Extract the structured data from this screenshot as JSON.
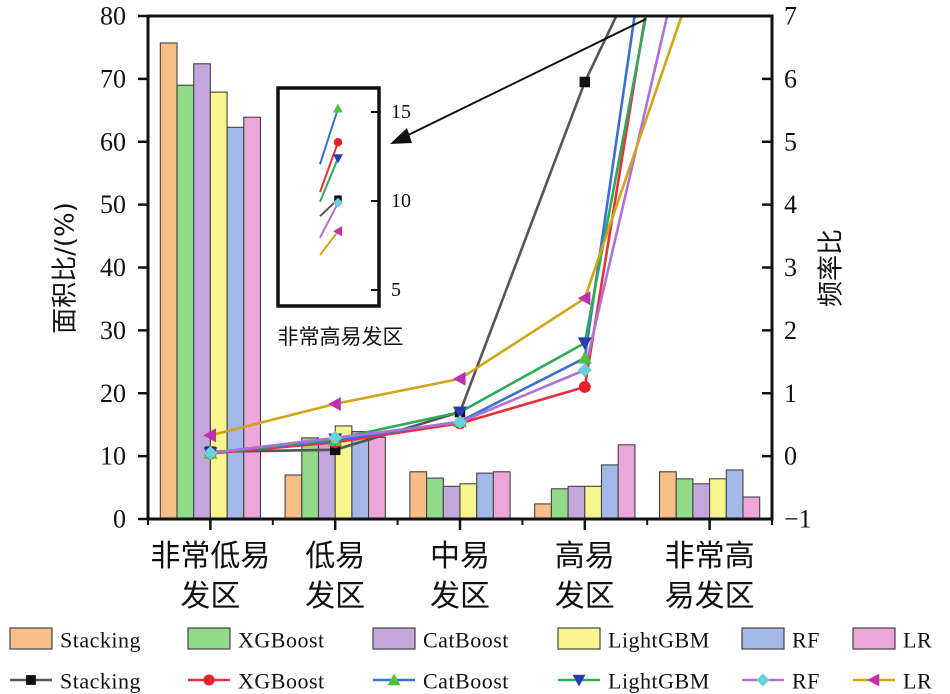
{
  "chart_data": {
    "type": "bar",
    "title": "",
    "xlabel": "",
    "ylabel": "面积比/(%)",
    "y2label": "频率比",
    "ylim": [
      0,
      80
    ],
    "y2lim": [
      -1,
      7
    ],
    "yticks": [
      "0",
      "10",
      "20",
      "30",
      "40",
      "50",
      "60",
      "70",
      "80"
    ],
    "y2ticks": [
      "−1",
      "0",
      "1",
      "2",
      "3",
      "4",
      "5",
      "6",
      "7"
    ],
    "categories": [
      [
        "非常低易",
        "发区"
      ],
      [
        "低易",
        "发区"
      ],
      [
        "中易",
        "发区"
      ],
      [
        "高易",
        "发区"
      ],
      [
        "非常高",
        "易发区"
      ]
    ],
    "bar_series": [
      {
        "name": "Stacking",
        "color": "#F8BE88",
        "values": [
          75.7,
          7.0,
          7.5,
          2.4,
          7.5
        ]
      },
      {
        "name": "XGBoost",
        "color": "#92D98A",
        "values": [
          69.0,
          12.9,
          6.5,
          4.8,
          6.4
        ]
      },
      {
        "name": "CatBoost",
        "color": "#C3A6DC",
        "values": [
          72.4,
          12.5,
          5.2,
          5.2,
          5.6
        ]
      },
      {
        "name": "LightGBM",
        "color": "#F8F58C",
        "values": [
          67.9,
          14.8,
          5.6,
          5.2,
          6.4
        ]
      },
      {
        "name": "RF",
        "color": "#A2B8E6",
        "values": [
          62.3,
          13.9,
          7.3,
          8.6,
          7.8
        ]
      },
      {
        "name": "LR",
        "color": "#EBA6DA",
        "values": [
          63.9,
          13.0,
          7.5,
          11.8,
          3.5
        ]
      }
    ],
    "line_series": [
      {
        "name": "Stacking",
        "line_color": "#555555",
        "marker": "square",
        "marker_color": "#111111",
        "values": [
          0.07,
          0.1,
          0.7,
          5.95,
          10.1
        ]
      },
      {
        "name": "XGBoost",
        "line_color": "#E8303A",
        "marker": "circle",
        "marker_color": "#E8202A",
        "values": [
          0.04,
          0.22,
          0.52,
          1.1,
          13.3
        ]
      },
      {
        "name": "CatBoost",
        "line_color": "#3A6FD8",
        "marker": "triangle-up",
        "marker_color": "#4CC43A",
        "values": [
          0.05,
          0.25,
          0.55,
          1.56,
          15.2
        ]
      },
      {
        "name": "LightGBM",
        "line_color": "#2EAA5A",
        "marker": "triangle-down",
        "marker_color": "#2A3BAE",
        "values": [
          0.05,
          0.27,
          0.7,
          1.8,
          12.4
        ]
      },
      {
        "name": "RF",
        "line_color": "#B070D8",
        "marker": "diamond",
        "marker_color": "#6CD0DC",
        "values": [
          0.05,
          0.29,
          0.54,
          1.37,
          9.9
        ]
      },
      {
        "name": "LR",
        "line_color": "#D4A418",
        "marker": "triangle-left",
        "marker_color": "#C030B0",
        "values": [
          0.33,
          0.83,
          1.23,
          2.51,
          8.3
        ]
      }
    ],
    "inset": {
      "label": "非常高易发区",
      "yticks": [
        "5",
        "10",
        "15"
      ],
      "ylim_note": "zoomed view of 频率比 for 非常高易发区"
    },
    "legend": {
      "placement": "bottom",
      "bar_entries": [
        "Stacking",
        "XGBoost",
        "CatBoost",
        "LightGBM",
        "RF",
        "LR"
      ],
      "line_entries": [
        "Stacking",
        "XGBoost",
        "CatBoost",
        "LightGBM",
        "RF",
        "LR"
      ]
    },
    "grid": false
  }
}
